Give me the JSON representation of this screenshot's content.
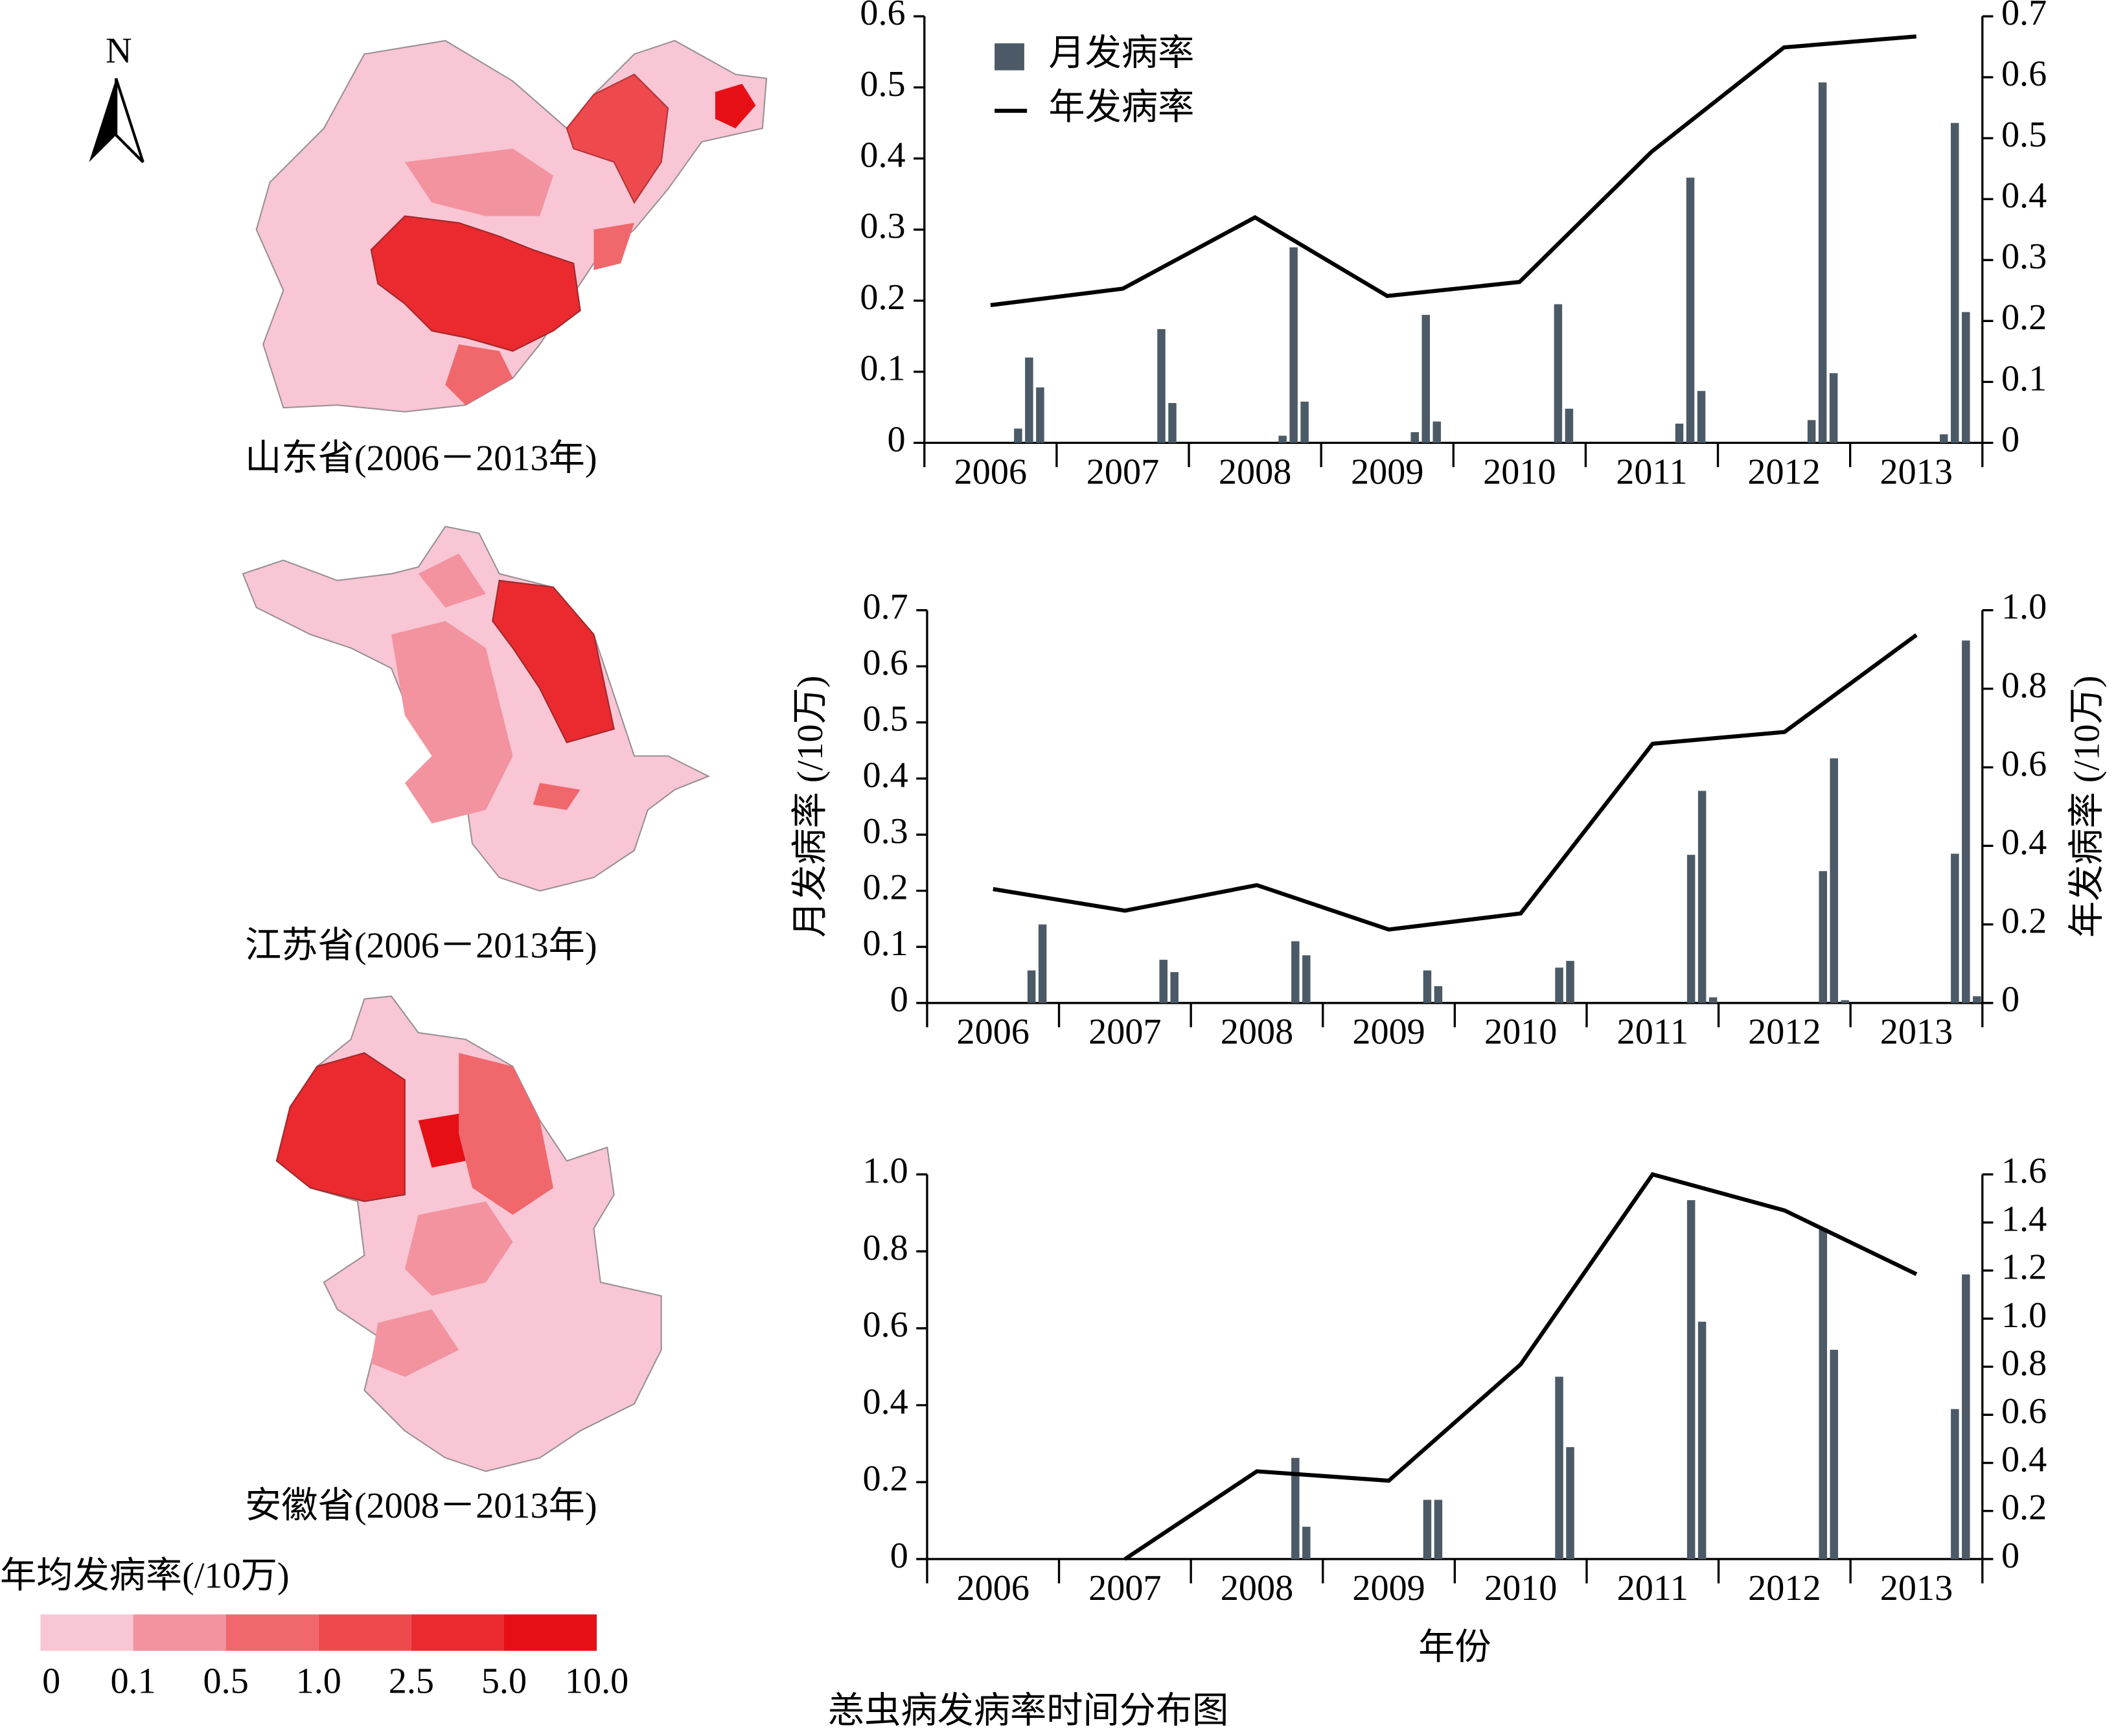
{
  "chart_data": [
    {
      "type": "bar-line",
      "categories": [
        "2006",
        "2007",
        "2008",
        "2009",
        "2010",
        "2011",
        "2012",
        "2013"
      ],
      "series": [
        {
          "name": "月发病率",
          "color": "#4b5a66",
          "values": [
            [
              0,
              0,
              0,
              0,
              0,
              0,
              0,
              0,
              0.02,
              0.12,
              0.078,
              0
            ],
            [
              0,
              0,
              0,
              0,
              0,
              0,
              0,
              0,
              0,
              0.16,
              0.056,
              0
            ],
            [
              0,
              0,
              0,
              0,
              0,
              0,
              0,
              0,
              0.01,
              0.275,
              0.058,
              0
            ],
            [
              0,
              0,
              0,
              0,
              0,
              0,
              0,
              0,
              0.015,
              0.18,
              0.03,
              0
            ],
            [
              0,
              0,
              0,
              0,
              0,
              0,
              0,
              0,
              0,
              0.195,
              0.048,
              0
            ],
            [
              0,
              0,
              0,
              0,
              0,
              0,
              0,
              0,
              0.027,
              0.373,
              0.073,
              0
            ],
            [
              0,
              0,
              0,
              0,
              0,
              0,
              0,
              0,
              0.032,
              0.507,
              0.098,
              0
            ],
            [
              0,
              0,
              0,
              0,
              0,
              0,
              0,
              0,
              0.012,
              0.45,
              0.184,
              0
            ]
          ]
        },
        {
          "name": "年发病率",
          "color": "#000000",
          "axis": "y2",
          "values": [
            0.226,
            0.253,
            0.37,
            0.241,
            0.264,
            0.478,
            0.649,
            0.667
          ]
        }
      ],
      "ylim": [
        0,
        0.6
      ],
      "yticks": [
        0,
        0.1,
        0.2,
        0.3,
        0.4,
        0.5,
        0.6
      ],
      "y2lim": [
        0,
        0.7
      ],
      "y2ticks": [
        0,
        0.1,
        0.2,
        0.3,
        0.4,
        0.5,
        0.6,
        0.7
      ],
      "legend": "top-left"
    },
    {
      "type": "bar-line",
      "categories": [
        "2006",
        "2007",
        "2008",
        "2009",
        "2010",
        "2011",
        "2012",
        "2013"
      ],
      "ylabel": "月发病率 (/10万)",
      "y2label": "年发病率 (/10万)",
      "series": [
        {
          "color": "#4b5a66",
          "values": [
            [
              0,
              0,
              0,
              0,
              0,
              0,
              0,
              0,
              0,
              0.058,
              0.14,
              0
            ],
            [
              0,
              0,
              0,
              0,
              0,
              0,
              0,
              0,
              0,
              0.077,
              0.055,
              0
            ],
            [
              0,
              0,
              0,
              0,
              0,
              0,
              0,
              0,
              0,
              0.11,
              0.085,
              0
            ],
            [
              0,
              0,
              0,
              0,
              0,
              0,
              0,
              0,
              0,
              0.058,
              0.03,
              0
            ],
            [
              0,
              0,
              0,
              0,
              0,
              0,
              0,
              0,
              0,
              0.063,
              0.075,
              0
            ],
            [
              0,
              0,
              0,
              0,
              0,
              0,
              0,
              0,
              0,
              0.264,
              0.378,
              0.01
            ],
            [
              0,
              0,
              0,
              0,
              0,
              0,
              0,
              0,
              0,
              0.235,
              0.436,
              0.005
            ],
            [
              0,
              0,
              0,
              0,
              0,
              0,
              0,
              0,
              0,
              0.266,
              0.646,
              0.012
            ]
          ]
        },
        {
          "color": "#000000",
          "axis": "y2",
          "values": [
            0.29,
            0.235,
            0.3,
            0.187,
            0.228,
            0.66,
            0.69,
            0.937
          ]
        }
      ],
      "ylim": [
        0,
        0.7
      ],
      "yticks": [
        0,
        0.1,
        0.2,
        0.3,
        0.4,
        0.5,
        0.6,
        0.7
      ],
      "y2lim": [
        0,
        1
      ],
      "y2ticks": [
        0,
        0.2,
        0.4,
        0.6,
        0.8,
        {
          "value": 1,
          "label": "1.0"
        }
      ]
    },
    {
      "type": "bar-line",
      "categories": [
        "2006",
        "2007",
        "2008",
        "2009",
        "2010",
        "2011",
        "2012",
        "2013"
      ],
      "xlabel": "年份",
      "series": [
        {
          "color": "#4b5a66",
          "values": [
            [
              0,
              0,
              0,
              0,
              0,
              0,
              0,
              0,
              0,
              0,
              0,
              0
            ],
            [
              0,
              0,
              0,
              0,
              0,
              0,
              0,
              0,
              0,
              0,
              0,
              0
            ],
            [
              0,
              0,
              0,
              0,
              0,
              0,
              0,
              0,
              0,
              0.263,
              0.084,
              0
            ],
            [
              0,
              0,
              0,
              0,
              0,
              0,
              0,
              0,
              0,
              0.154,
              0.154,
              0
            ],
            [
              0,
              0,
              0,
              0,
              0,
              0,
              0,
              0,
              0,
              0.474,
              0.291,
              0
            ],
            [
              0,
              0,
              0,
              0,
              0,
              0,
              0,
              0,
              0,
              0.933,
              0.617,
              0
            ],
            [
              0,
              0,
              0,
              0,
              0,
              0,
              0,
              0,
              0,
              0.86,
              0.544,
              0
            ],
            [
              0,
              0,
              0,
              0,
              0,
              0,
              0,
              0,
              0,
              0.39,
              0.74,
              0
            ]
          ]
        },
        {
          "color": "#000000",
          "axis": "y2",
          "values": [
            null,
            0,
            0.365,
            0.326,
            0.81,
            1.6,
            1.45,
            1.185
          ]
        }
      ],
      "ylim": [
        0,
        1
      ],
      "yticks": [
        0,
        0.2,
        0.4,
        0.6,
        0.8,
        {
          "value": 1,
          "label": "1.0"
        }
      ],
      "y2lim": [
        0,
        1.6
      ],
      "y2ticks": [
        0,
        0.2,
        0.4,
        0.6,
        0.8,
        {
          "value": 1,
          "label": "1.0"
        },
        1.2,
        1.4,
        1.6
      ]
    }
  ],
  "map": {
    "north": "N",
    "labels": [
      "山东省(2006－2013年)",
      "江苏省(2006－2013年)",
      "安徽省(2008－2013年)"
    ],
    "legend_title": "年均发病率(/10万)",
    "breaks": [
      0,
      0.1,
      0.5,
      {
        "value": 1,
        "label": "1.0"
      },
      2.5,
      {
        "value": 5,
        "label": "5.0"
      },
      {
        "value": 10,
        "label": "10.0"
      }
    ],
    "colors": [
      "#f8c6d4",
      "#f2939f",
      "#f0676c",
      "#ee4a4e",
      "#ea2a2e",
      "#e60f16"
    ]
  },
  "caption": "恙虫病发病率时间分布图"
}
